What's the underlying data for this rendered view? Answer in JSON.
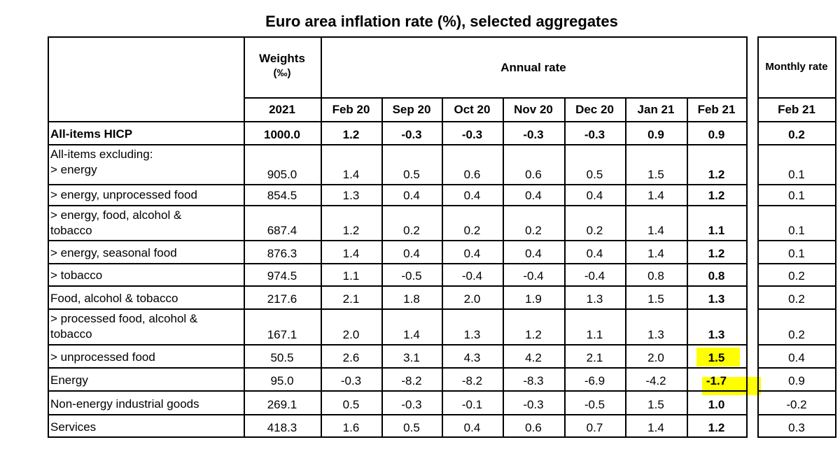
{
  "title": "Euro area inflation rate (%), selected aggregates",
  "header": {
    "weights_label_1": "Weights",
    "weights_label_2": "(‰)",
    "annual_rate": "Annual rate",
    "monthly_rate": "Monthly rate",
    "weights_year": "2021",
    "months": [
      "Feb 20",
      "Sep 20",
      "Oct 20",
      "Nov 20",
      "Dec 20",
      "Jan 21",
      "Feb 21"
    ],
    "monthly_month": "Feb 21"
  },
  "rows": [
    {
      "label": [
        "All-items HICP"
      ],
      "weight": "1000.0",
      "annual": [
        "1.2",
        "-0.3",
        "-0.3",
        "-0.3",
        "-0.3",
        "0.9",
        "0.9"
      ],
      "monthly": "0.2"
    },
    {
      "label": [
        "All-items excluding:",
        "> energy"
      ],
      "weight": "905.0",
      "annual": [
        "1.4",
        "0.5",
        "0.6",
        "0.6",
        "0.5",
        "1.5",
        "1.2"
      ],
      "monthly": "0.1"
    },
    {
      "label": [
        "> energy, unprocessed food"
      ],
      "weight": "854.5",
      "annual": [
        "1.3",
        "0.4",
        "0.4",
        "0.4",
        "0.4",
        "1.4",
        "1.2"
      ],
      "monthly": "0.1"
    },
    {
      "label": [
        "> energy, food, alcohol &",
        "tobacco"
      ],
      "weight": "687.4",
      "annual": [
        "1.2",
        "0.2",
        "0.2",
        "0.2",
        "0.2",
        "1.4",
        "1.1"
      ],
      "monthly": "0.1"
    },
    {
      "label": [
        "> energy, seasonal food"
      ],
      "weight": "876.3",
      "annual": [
        "1.4",
        "0.4",
        "0.4",
        "0.4",
        "0.4",
        "1.4",
        "1.2"
      ],
      "monthly": "0.1"
    },
    {
      "label": [
        "> tobacco"
      ],
      "weight": "974.5",
      "annual": [
        "1.1",
        "-0.5",
        "-0.4",
        "-0.4",
        "-0.4",
        "0.8",
        "0.8"
      ],
      "monthly": "0.2"
    },
    {
      "label": [
        "Food, alcohol & tobacco"
      ],
      "weight": "217.6",
      "annual": [
        "2.1",
        "1.8",
        "2.0",
        "1.9",
        "1.3",
        "1.5",
        "1.3"
      ],
      "monthly": "0.2"
    },
    {
      "label": [
        "> processed food, alcohol &",
        "tobacco"
      ],
      "weight": "167.1",
      "annual": [
        "2.0",
        "1.4",
        "1.3",
        "1.2",
        "1.1",
        "1.3",
        "1.3"
      ],
      "monthly": "0.2"
    },
    {
      "label": [
        "> unprocessed food"
      ],
      "weight": "50.5",
      "annual": [
        "2.6",
        "3.1",
        "4.3",
        "4.2",
        "2.1",
        "2.0",
        "1.5"
      ],
      "monthly": "0.4"
    },
    {
      "label": [
        "Energy"
      ],
      "weight": "95.0",
      "annual": [
        "-0.3",
        "-8.2",
        "-8.2",
        "-8.3",
        "-6.9",
        "-4.2",
        "-1.7"
      ],
      "monthly": "0.9"
    },
    {
      "label": [
        "Non-energy industrial goods"
      ],
      "weight": "269.1",
      "annual": [
        "0.5",
        "-0.3",
        "-0.1",
        "-0.3",
        "-0.5",
        "1.5",
        "1.0"
      ],
      "monthly": "-0.2"
    },
    {
      "label": [
        "Services"
      ],
      "weight": "418.3",
      "annual": [
        "1.6",
        "0.5",
        "0.4",
        "0.6",
        "0.7",
        "1.4",
        "1.2"
      ],
      "monthly": "0.3"
    }
  ],
  "colors": {
    "highlight": "#ffff00"
  }
}
